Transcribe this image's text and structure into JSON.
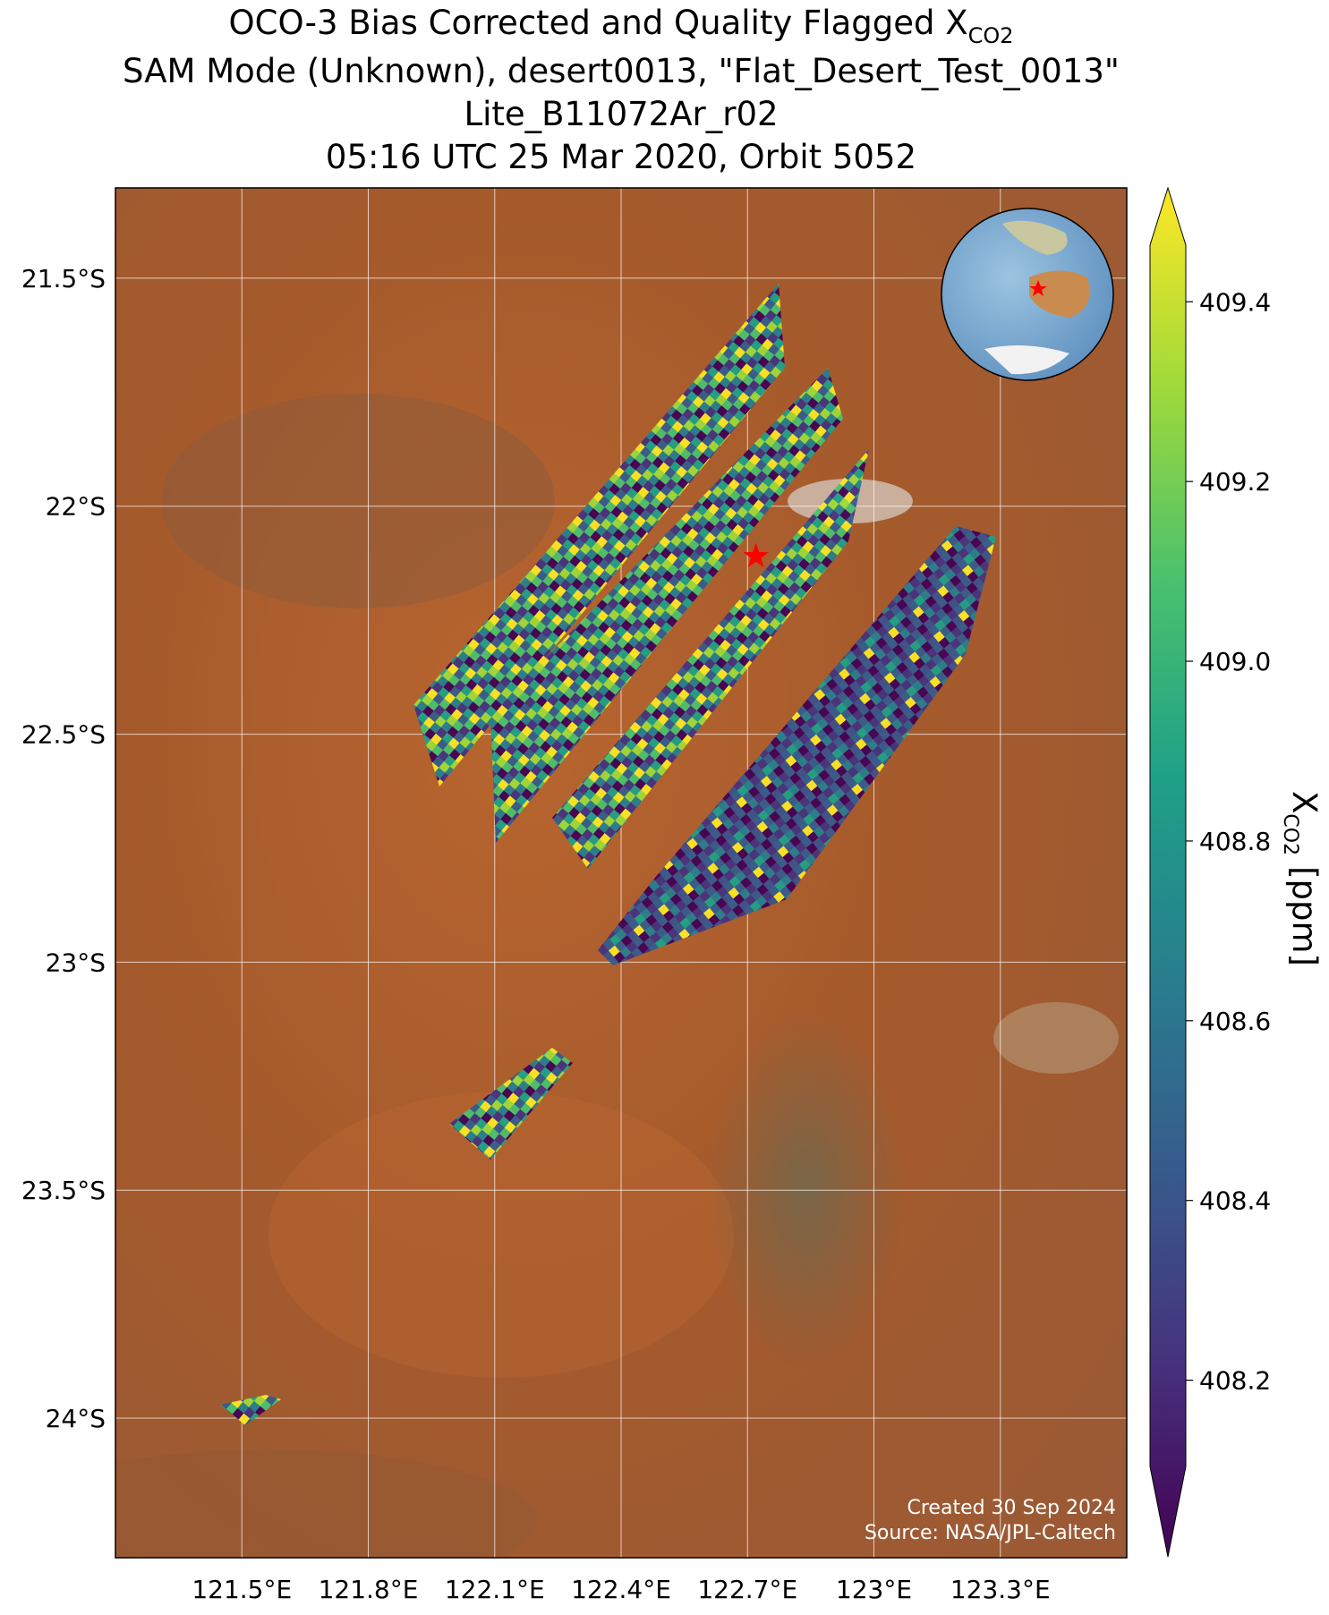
{
  "title": {
    "line1": "OCO-3 Bias Corrected and Quality Flagged X",
    "line1_subscript": "CO2",
    "line2": "SAM Mode (Unknown), desert0013, \"Flat_Desert_Test_0013\"",
    "line3": "Lite_B11072Ar_r02",
    "line4": "05:16 UTC 25 Mar 2020, Orbit 5052"
  },
  "map": {
    "xlim": [
      121.2,
      123.6
    ],
    "ylim": [
      -24.306,
      -21.302
    ],
    "xticks": [
      {
        "value": 121.5,
        "label": "121.5°E"
      },
      {
        "value": 121.8,
        "label": "121.8°E"
      },
      {
        "value": 122.1,
        "label": "122.1°E"
      },
      {
        "value": 122.4,
        "label": "122.4°E"
      },
      {
        "value": 122.7,
        "label": "122.7°E"
      },
      {
        "value": 123,
        "label": "123°E"
      },
      {
        "value": 123.3,
        "label": "123.3°E"
      }
    ],
    "yticks": [
      {
        "value": -21.5,
        "label": "21.5°S"
      },
      {
        "value": -22,
        "label": "22°S"
      },
      {
        "value": -22.5,
        "label": "22.5°S"
      },
      {
        "value": -23,
        "label": "23°S"
      },
      {
        "value": -23.5,
        "label": "23.5°S"
      },
      {
        "value": -24,
        "label": "24°S"
      }
    ],
    "grid": true,
    "site": {
      "lon": 122.72,
      "lat": -22.11,
      "color": "#ff0000"
    }
  },
  "colorbar": {
    "lim": [
      408.104,
      409.463
    ],
    "ticks": [
      408.2,
      408.4,
      408.6,
      408.8,
      {
        "value": 409,
        "label": "409.0"
      },
      409.2,
      409.4
    ],
    "label": "X",
    "label_subscript": "CO2",
    "label_unit": "[ppm]",
    "colormap": [
      "#440154",
      "#46327e",
      "#365c8d",
      "#277f8e",
      "#1fa187",
      "#4ac16d",
      "#a0da39",
      "#fde725"
    ]
  },
  "footer": {
    "created": "Created 30 Sep 2024",
    "source": "Source: NASA/JPL-Caltech"
  }
}
